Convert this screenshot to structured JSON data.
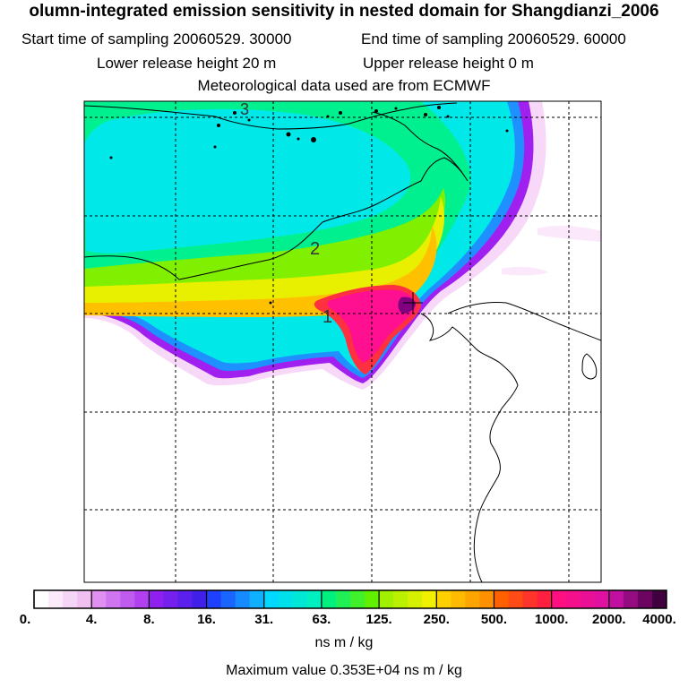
{
  "header": {
    "title": "olumn-integrated emission sensitivity in nested domain for Shangdianzi_2006",
    "start_label": "Start time of sampling 20060529. 30000",
    "end_label": "End time of sampling 20060529. 60000",
    "lower_label": "Lower release height   20 m",
    "upper_label": "Upper release height    0 m",
    "met_label": "Meteorological data used are from ECMWF"
  },
  "map": {
    "contour_labels": [
      "3",
      "2",
      "1"
    ],
    "colors": {
      "c0": "#ffffff",
      "c1": "#f8d8f8",
      "c2": "#d070f0",
      "c3": "#a020f0",
      "c4": "#5020e8",
      "c5": "#1e90ff",
      "c6": "#00e8e8",
      "c7": "#00f090",
      "c8": "#80f000",
      "c9": "#e8f000",
      "c10": "#ffc000",
      "c11": "#ff3040",
      "c12": "#ff1090",
      "c13": "#800080"
    }
  },
  "colorbar": {
    "ticks": [
      "0.",
      "4.",
      "8.",
      "16.",
      "31.",
      "63.",
      "125.",
      "250.",
      "500.",
      "1000.",
      "2000.",
      "4000."
    ],
    "units": "ns m / kg",
    "max_label": "Maximum value  0.353E+04 ns m / kg"
  }
}
